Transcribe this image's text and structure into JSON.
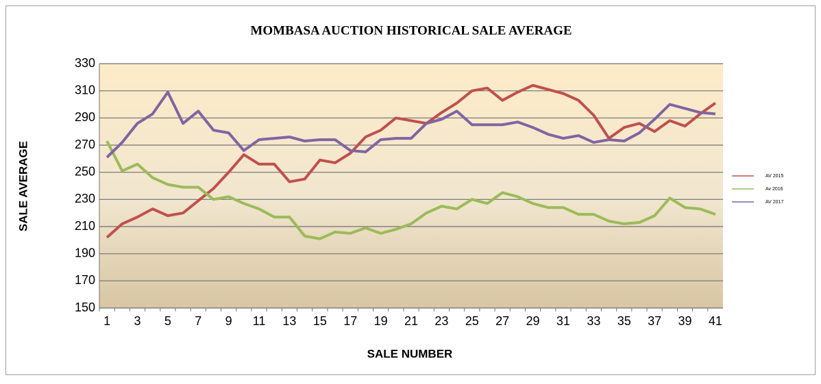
{
  "chart_data": {
    "type": "line",
    "title": "MOMBASA AUCTION  HISTORICAL  SALE AVERAGE",
    "x_label": "SALE NUMBER",
    "y_label": "SALE AVERAGE",
    "categories": [
      1,
      null,
      3,
      null,
      5,
      null,
      7,
      null,
      9,
      null,
      11,
      null,
      13,
      null,
      15,
      null,
      17,
      null,
      19,
      null,
      21,
      null,
      23,
      null,
      25,
      null,
      27,
      null,
      29,
      null,
      31,
      null,
      33,
      null,
      35,
      null,
      37,
      null,
      39,
      null,
      41
    ],
    "series": [
      {
        "name": "AV 2015",
        "color": "#c0504d",
        "values": [
          202,
          212,
          217,
          223,
          218,
          220,
          229,
          238,
          250,
          263,
          256,
          256,
          243,
          245,
          259,
          257,
          264,
          276,
          281,
          290,
          288,
          286,
          294,
          301,
          310,
          312,
          303,
          309,
          314,
          311,
          308,
          303,
          292,
          275,
          283,
          286,
          280,
          288,
          284,
          293,
          301
        ]
      },
      {
        "name": "Av 2016",
        "color": "#9bbb59",
        "values": [
          273,
          251,
          256,
          246,
          241,
          239,
          239,
          230,
          232,
          227,
          223,
          217,
          217,
          203,
          201,
          206,
          205,
          209,
          205,
          208,
          212,
          220,
          225,
          223,
          230,
          227,
          235,
          232,
          227,
          224,
          224,
          219,
          219,
          214,
          212,
          213,
          218,
          231,
          224,
          223,
          219
        ]
      },
      {
        "name": "AV 2017",
        "color": "#8064a2",
        "values": [
          261,
          272,
          286,
          293,
          309,
          286,
          295,
          281,
          279,
          266,
          274,
          275,
          276,
          273,
          274,
          274,
          266,
          265,
          274,
          275,
          275,
          286,
          289,
          295,
          285,
          285,
          285,
          287,
          283,
          278,
          275,
          277,
          272,
          274,
          273,
          279,
          289,
          300,
          297,
          294,
          293
        ]
      }
    ],
    "ylim": [
      150,
      330
    ],
    "yticks": [
      150,
      170,
      190,
      210,
      230,
      250,
      270,
      290,
      310,
      330
    ],
    "grid": true,
    "legend": "right"
  }
}
